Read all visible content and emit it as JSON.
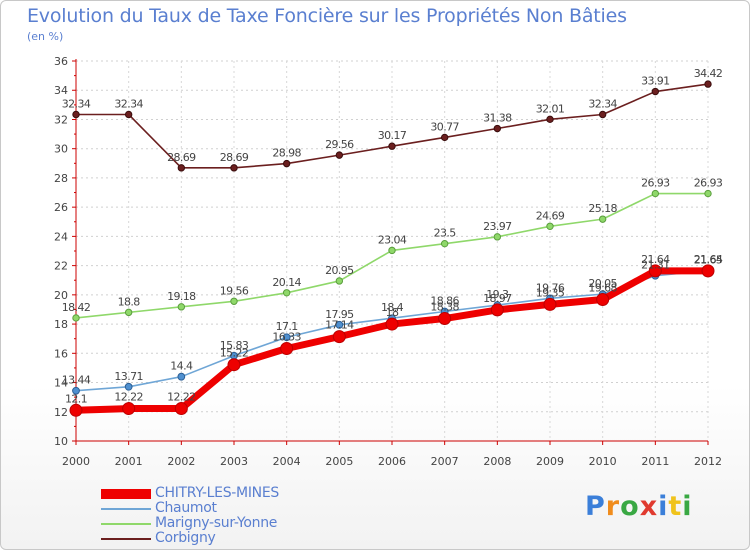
{
  "header": {
    "title": "Evolution du Taux de Taxe Foncière sur les Propriétés Non Bâties",
    "subtitle": "(en %)"
  },
  "logo": {
    "letters": [
      "P",
      "r",
      "o",
      "x",
      "i",
      "t",
      "i"
    ],
    "colors": [
      "#3b7fd9",
      "#f08c1c",
      "#39a843",
      "#e03a2f",
      "#3b7fd9",
      "#f0c31c",
      "#39a843"
    ]
  },
  "chart_data": {
    "type": "line",
    "title": "Evolution du Taux de Taxe Foncière sur les Propriétés Non Bâties",
    "ylabel": "(en %)",
    "xlabel": "",
    "x": [
      "2000",
      "2001",
      "2002",
      "2003",
      "2004",
      "2005",
      "2006",
      "2007",
      "2008",
      "2009",
      "2010",
      "2011",
      "2012"
    ],
    "ylim": [
      10,
      36
    ],
    "yticks": [
      "10",
      "12",
      "14",
      "16",
      "18",
      "20",
      "22",
      "24",
      "26",
      "28",
      "30",
      "32",
      "34",
      "36"
    ],
    "grid": "horizontal dashed",
    "legend_position": "bottom-left",
    "series": [
      {
        "name": "Corbigny",
        "color": "#6b1f1f",
        "values": [
          32.34,
          32.34,
          28.69,
          28.69,
          28.98,
          29.56,
          30.17,
          30.77,
          31.38,
          32.01,
          32.34,
          33.91,
          34.42
        ],
        "labels": [
          "32.34",
          "32.34",
          "28.69",
          "28.69",
          "28.98",
          "29.56",
          "30.17",
          "30.77",
          "31.38",
          "32.01",
          "32.34",
          "33.91",
          "34.42"
        ]
      },
      {
        "name": "Marigny-sur-Yonne",
        "color": "#8fd86a",
        "values": [
          18.42,
          18.8,
          19.18,
          19.56,
          20.14,
          20.95,
          23.04,
          23.5,
          23.97,
          24.69,
          25.18,
          26.93,
          26.93
        ],
        "labels": [
          "18.42",
          "18.8",
          "19.18",
          "19.56",
          "20.14",
          "20.95",
          "23.04",
          "23.5",
          "23.97",
          "24.69",
          "25.18",
          "26.93",
          "26.93"
        ]
      },
      {
        "name": "Chaumot",
        "color": "#6fa6d6",
        "values": [
          13.44,
          13.71,
          14.4,
          15.83,
          17.1,
          17.95,
          18.4,
          18.86,
          19.3,
          19.76,
          20.05,
          21.31,
          21.65
        ],
        "labels": [
          "13.44",
          "13.71",
          "14.4",
          "15.83",
          "17.1",
          "17.95",
          "18.4",
          "18.86",
          "19.3",
          "19.76",
          "20.05",
          "21.31",
          "21.65"
        ]
      },
      {
        "name": "CHITRY-LES-MINES",
        "color": "#ee0000",
        "values": [
          12.1,
          12.22,
          12.22,
          15.22,
          16.33,
          17.14,
          18.0,
          18.38,
          18.97,
          19.35,
          19.68,
          21.64,
          21.64
        ],
        "labels": [
          "12.1",
          "12.22",
          "12.22",
          "15.22",
          "16.33",
          "17.14",
          "18",
          "18.38",
          "18.97",
          "19.35",
          "19.68",
          "21.64",
          "21.64"
        ]
      }
    ]
  }
}
